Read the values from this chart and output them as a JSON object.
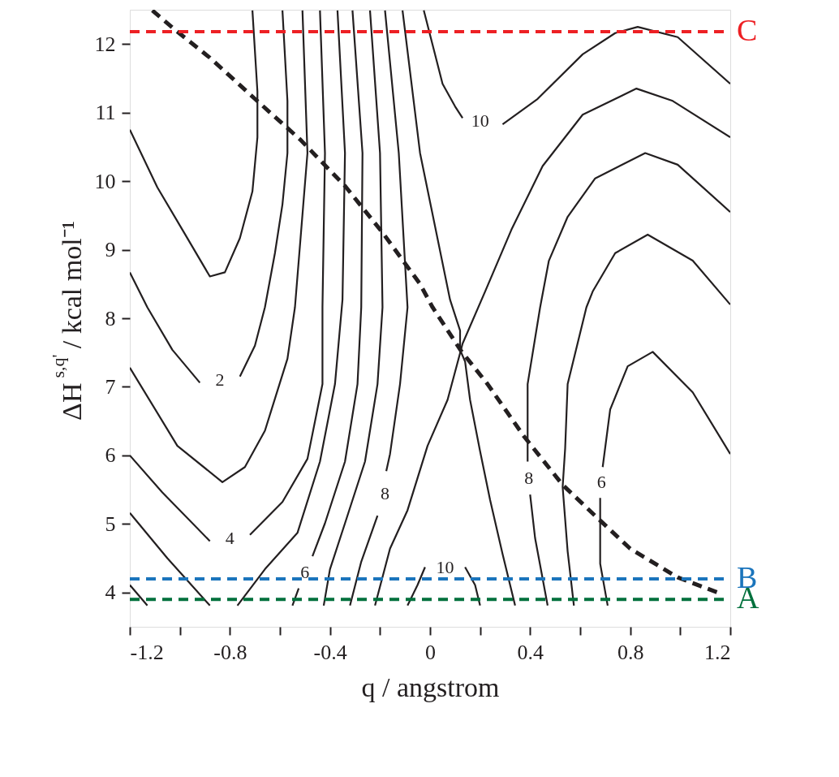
{
  "chart_data": {
    "type": "line",
    "xlabel": "q / angstrom",
    "ylabel": "ΔH$^{s,q'}$ / kcal mol⁻¹",
    "xlim": [
      -1.2,
      1.2
    ],
    "ylim": [
      3.5,
      12.5
    ],
    "xticks": [
      -1.2,
      {
        "value": -1.0,
        "label": null
      },
      -0.8,
      {
        "value": -0.6,
        "label": null
      },
      -0.4,
      {
        "value": -0.2,
        "label": null
      },
      0,
      {
        "value": 0.2,
        "label": null
      },
      0.4,
      {
        "value": 0.6,
        "label": null
      },
      0.8,
      {
        "value": 1.0,
        "label": null
      },
      1.2
    ],
    "yticks": [
      4,
      5,
      6,
      7,
      8,
      9,
      10,
      11,
      12
    ],
    "grid": false,
    "line_style": "solid",
    "series": [
      {
        "type": "line",
        "color": "#231f20",
        "x": [
          -1.2,
          -1.09,
          -0.98,
          -0.88,
          -0.82,
          -0.76,
          -0.71,
          -0.69,
          -0.69,
          -0.71
        ],
        "values": [
          10.75,
          9.91,
          9.23,
          8.61,
          8.67,
          9.17,
          9.85,
          10.64,
          11.31,
          12.49
        ]
      },
      {
        "type": "line",
        "color": "#231f20",
        "x": [
          -1.2,
          -1.13,
          -1.03,
          -0.92,
          -0.84,
          -0.76,
          -0.7,
          -0.66,
          -0.62,
          -0.59,
          -0.57,
          -0.57,
          -0.59
        ],
        "values": [
          8.67,
          8.16,
          7.54,
          7.06,
          null,
          7.15,
          7.6,
          8.16,
          8.95,
          9.66,
          10.41,
          11.17,
          12.49
        ]
      },
      {
        "type": "line",
        "color": "#231f20",
        "x": [
          -1.2,
          -1.01,
          -0.83,
          -0.74,
          -0.66,
          -0.57,
          -0.54,
          -0.49,
          -0.51
        ],
        "values": [
          7.28,
          6.14,
          5.61,
          5.83,
          6.36,
          7.41,
          8.16,
          10.41,
          12.49
        ]
      },
      {
        "type": "line",
        "color": "#231f20",
        "x": [
          -1.2,
          -1.07,
          -0.88,
          -0.8,
          -0.72,
          -0.59,
          -0.49,
          -0.43,
          -0.43,
          -0.42,
          -0.44
        ],
        "values": [
          6.0,
          5.46,
          4.75,
          null,
          4.84,
          5.32,
          5.95,
          7.04,
          8.16,
          10.41,
          12.49
        ]
      },
      {
        "type": "line",
        "color": "#231f20",
        "x": [
          -1.2,
          -1.05,
          -0.88
        ],
        "values": [
          5.16,
          4.5,
          3.81
        ]
      },
      {
        "type": "line",
        "color": "#231f20",
        "x": [
          -0.77,
          -0.66,
          -0.53,
          -0.44,
          -0.38,
          -0.35,
          -0.34,
          -0.37
        ],
        "values": [
          3.81,
          4.34,
          4.87,
          5.91,
          7.04,
          8.27,
          10.41,
          12.49
        ]
      },
      {
        "type": "line",
        "color": "#231f20",
        "x": [
          -1.2,
          -1.13
        ],
        "values": [
          4.11,
          3.81
        ]
      },
      {
        "type": "line",
        "color": "#231f20",
        "x": [
          -0.31,
          -0.27,
          -0.275,
          -0.29,
          -0.34,
          -0.42,
          -0.47,
          -0.5,
          -0.525,
          -0.55
        ],
        "values": [
          12.49,
          10.41,
          8.16,
          7.04,
          5.91,
          5.01,
          4.53,
          null,
          4.06,
          3.81
        ]
      },
      {
        "type": "line",
        "color": "#231f20",
        "x": [
          -0.24,
          -0.2,
          -0.19,
          -0.21,
          -0.26,
          -0.34,
          -0.4,
          -0.425
        ],
        "values": [
          12.49,
          10.41,
          8.16,
          7.04,
          5.91,
          5.01,
          4.34,
          3.81
        ]
      },
      {
        "type": "line",
        "color": "#231f20",
        "x": [
          -0.18,
          -0.125,
          -0.09,
          -0.12,
          -0.16,
          -0.175,
          -0.18,
          -0.21,
          -0.275,
          -0.32
        ],
        "values": [
          12.49,
          10.41,
          8.16,
          7.04,
          6.02,
          5.77,
          null,
          5.12,
          4.45,
          3.81
        ]
      },
      {
        "type": "line",
        "color": "#231f20",
        "x": [
          -0.11,
          -0.04,
          0.08,
          0.12,
          0.12,
          0.14,
          0.16,
          0.2,
          0.24,
          0.29,
          0.34
        ],
        "values": [
          12.49,
          10.41,
          8.27,
          7.82,
          7.54,
          7.37,
          6.81,
          6.06,
          5.35,
          4.56,
          3.81
        ]
      },
      {
        "type": "line",
        "color": "#231f20",
        "x": [
          1.2,
          0.97,
          0.825,
          0.61,
          0.45,
          0.325,
          0.22,
          0.13,
          0.12,
          0.07,
          -0.01,
          -0.09,
          -0.16,
          -0.22
        ],
        "values": [
          10.64,
          11.17,
          11.35,
          10.97,
          10.22,
          9.29,
          8.39,
          7.63,
          7.49,
          6.81,
          6.14,
          5.2,
          4.64,
          3.81
        ]
      },
      {
        "type": "line",
        "color": "#231f20",
        "x": [
          -0.09,
          -0.05,
          -0.02,
          0.06,
          0.14,
          0.18,
          0.2
        ],
        "values": [
          3.81,
          4.11,
          4.37,
          null,
          4.37,
          4.11,
          3.81
        ]
      },
      {
        "type": "line",
        "color": "#231f20",
        "x": [
          -0.025,
          0.01,
          0.05,
          0.1,
          0.13,
          0.2,
          0.29,
          0.43,
          0.61,
          0.74,
          0.83,
          0.99,
          1.2
        ],
        "values": [
          12.49,
          11.99,
          11.42,
          11.09,
          10.92,
          null,
          10.83,
          11.2,
          11.85,
          12.16,
          12.25,
          12.1,
          11.42
        ]
      },
      {
        "type": "line",
        "color": "#231f20",
        "x": [
          1.2,
          0.99,
          0.86,
          0.66,
          0.55,
          0.475,
          0.44,
          0.39,
          0.39,
          0.395,
          0.4,
          0.42,
          0.47
        ],
        "values": [
          9.55,
          10.24,
          10.41,
          10.04,
          9.48,
          8.84,
          8.16,
          7.04,
          5.91,
          null,
          5.43,
          4.79,
          3.81
        ]
      },
      {
        "type": "line",
        "color": "#231f20",
        "x": [
          1.2,
          1.05,
          0.87,
          0.74,
          0.65,
          0.625,
          0.55,
          0.54,
          0.53,
          0.55,
          0.575
        ],
        "values": [
          8.2,
          8.84,
          9.22,
          8.95,
          8.39,
          8.16,
          7.04,
          6.1,
          5.54,
          4.6,
          3.81
        ]
      },
      {
        "type": "line",
        "color": "#231f20",
        "x": [
          1.2,
          1.05,
          0.89,
          0.79,
          0.72,
          0.69,
          0.685,
          0.68,
          0.68,
          0.71
        ],
        "values": [
          6.02,
          6.92,
          7.51,
          7.3,
          6.67,
          5.83,
          null,
          5.38,
          4.42,
          3.81
        ]
      },
      {
        "type": "line",
        "color": "#231f20",
        "line_style": "dashed",
        "x": [
          -1.11,
          -1.02,
          -0.88,
          -0.7,
          -0.52,
          -0.34,
          -0.19,
          -0.04,
          0.01,
          0.125,
          0.23,
          0.375,
          0.53,
          0.68,
          0.8,
          0.99,
          1.15
        ],
        "values": [
          12.49,
          12.21,
          11.8,
          11.2,
          10.61,
          9.93,
          9.25,
          8.5,
          8.16,
          7.52,
          7.04,
          6.28,
          5.57,
          5.05,
          4.64,
          4.22,
          4.0
        ]
      }
    ],
    "ref_lines": [
      {
        "axis": "y",
        "value": 12.18,
        "label": "C",
        "color": "#ed2024",
        "line_style": "dashed"
      },
      {
        "axis": "y",
        "value": 4.2,
        "label": "B",
        "color": "#1b75bc",
        "line_style": "dashed"
      },
      {
        "axis": "y",
        "value": 3.9,
        "label": "A",
        "color": "#00703c",
        "line_style": "dashed"
      }
    ],
    "annotations": [
      "2",
      "4",
      "6",
      "8",
      "10",
      "10",
      "8",
      "6"
    ]
  }
}
